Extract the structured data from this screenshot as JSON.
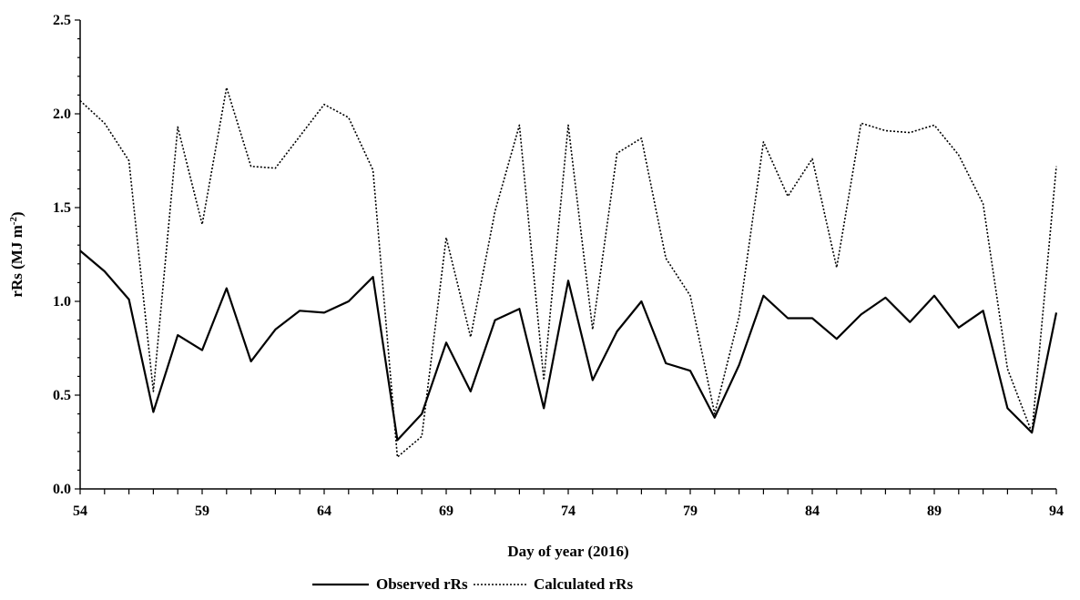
{
  "chart_data": {
    "type": "line",
    "xlabel": "Day of year (2016)",
    "ylabel_main": "rRs (MJ m",
    "ylabel_sup": "-2",
    "ylabel_end": ")",
    "xlim": [
      54,
      94
    ],
    "ylim": [
      0.0,
      2.5
    ],
    "x_ticks": [
      54,
      59,
      64,
      69,
      74,
      79,
      84,
      89,
      94
    ],
    "y_ticks": [
      0.0,
      0.5,
      1.0,
      1.5,
      2.0,
      2.5
    ],
    "y_tick_labels": [
      "0.0",
      "0.5",
      "1.0",
      "1.5",
      "2.0",
      "2.5"
    ],
    "grid": false,
    "legend_position": "bottom-center",
    "x": [
      54,
      55,
      56,
      57,
      58,
      59,
      60,
      61,
      62,
      63,
      64,
      65,
      66,
      67,
      68,
      69,
      70,
      71,
      72,
      73,
      74,
      75,
      76,
      77,
      78,
      79,
      80,
      81,
      82,
      83,
      84,
      85,
      86,
      87,
      88,
      89,
      90,
      91,
      92,
      93,
      94
    ],
    "series": [
      {
        "name": "Observed rRs",
        "style": "solid",
        "color": "#000000",
        "values": [
          1.27,
          1.16,
          1.01,
          0.41,
          0.82,
          0.74,
          1.07,
          0.68,
          0.85,
          0.95,
          0.94,
          1.0,
          1.13,
          0.26,
          0.4,
          0.78,
          0.52,
          0.9,
          0.96,
          0.43,
          1.11,
          0.58,
          0.84,
          1.0,
          0.67,
          0.63,
          0.38,
          0.66,
          1.03,
          0.91,
          0.91,
          0.8,
          0.93,
          1.02,
          0.89,
          1.03,
          0.86,
          0.95,
          0.43,
          0.3,
          0.94
        ]
      },
      {
        "name": "Calculated rRs",
        "style": "dotted",
        "color": "#000000",
        "values": [
          2.07,
          1.95,
          1.75,
          0.52,
          1.93,
          1.41,
          2.14,
          1.72,
          1.71,
          1.88,
          2.05,
          1.98,
          1.7,
          0.17,
          0.28,
          1.34,
          0.81,
          1.48,
          1.94,
          0.58,
          1.94,
          0.85,
          1.79,
          1.87,
          1.23,
          1.03,
          0.4,
          0.92,
          1.85,
          1.56,
          1.76,
          1.18,
          1.95,
          1.91,
          1.9,
          1.94,
          1.78,
          1.52,
          0.64,
          0.3,
          1.72
        ]
      }
    ]
  }
}
